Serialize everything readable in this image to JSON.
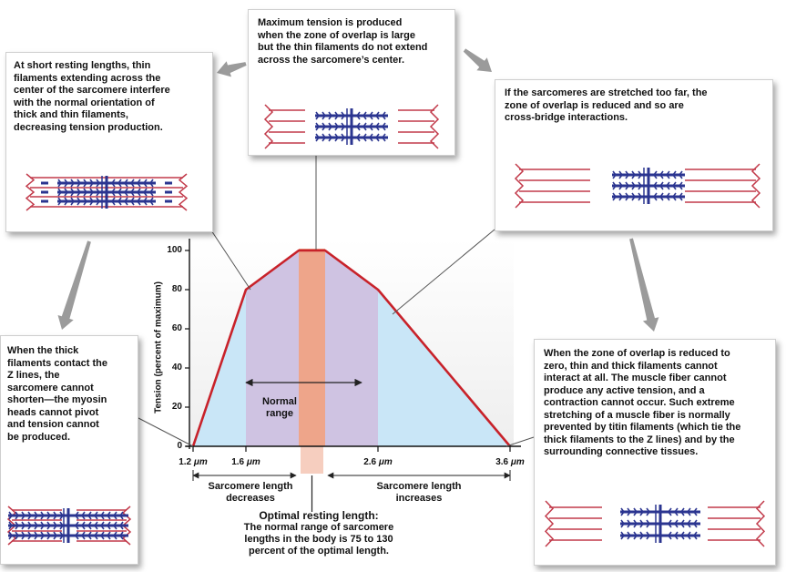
{
  "chart_data": {
    "type": "line",
    "ylabel": "Tension (percent of maximum)",
    "yticks": [
      "0",
      "20",
      "40",
      "60",
      "80",
      "100"
    ],
    "ylim": [
      0,
      100
    ],
    "x_um": [
      1.2,
      1.6,
      2.0,
      2.2,
      2.6,
      3.6
    ],
    "tension_percent": [
      0,
      80,
      100,
      100,
      80,
      0
    ],
    "xtick_labels": [
      {
        "value": "1.2",
        "unit": "μm"
      },
      {
        "value": "1.6",
        "unit": "μm"
      },
      {
        "value": "2.6",
        "unit": "μm"
      },
      {
        "value": "3.6",
        "unit": "μm"
      }
    ],
    "normal_range_label": [
      "Normal",
      "range"
    ],
    "normal_range_um": [
      1.6,
      2.6
    ],
    "optimal_band_um": [
      2.0,
      2.2
    ]
  },
  "captions": {
    "top_center": [
      "Maximum tension is produced",
      "when the zone of overlap is large",
      "but the thin filaments do not extend",
      "across the sarcomere’s center."
    ],
    "top_left": [
      "At short resting lengths, thin",
      "filaments extending across the",
      "center of the sarcomere interfere",
      "with the normal orientation of",
      "thick and thin filaments,",
      "decreasing tension production."
    ],
    "top_right": [
      "If the sarcomeres are stretched too far, the",
      "zone of overlap is reduced and so are",
      "cross-bridge interactions."
    ],
    "bottom_left": [
      "When the thick",
      "filaments contact the",
      "Z lines, the",
      "sarcomere cannot",
      "shorten—the myosin",
      "heads cannot pivot",
      "and tension cannot",
      "be produced."
    ],
    "bottom_right": [
      "When the zone of overlap is reduced to",
      "zero, thin and thick filaments cannot",
      "interact at all. The muscle fiber cannot",
      "produce any active tension, and a",
      "contraction cannot occur. Such extreme",
      "stretching of a muscle fiber is normally",
      "prevented by titin filaments (which tie the",
      "thick filaments to the Z lines) and by the",
      "surrounding connective tissues."
    ]
  },
  "axis_labels": {
    "decreases": [
      "Sarcomere length",
      "decreases"
    ],
    "increases": [
      "Sarcomere length",
      "increases"
    ]
  },
  "optimal": {
    "title": "Optimal resting length",
    "colon": ":",
    "lines": [
      "The normal range of sarcomere",
      "lengths in the body is 75 to 130",
      "percent of the optimal length."
    ]
  },
  "colors": {
    "curve": "#c8222a",
    "fill": "#c9e6f7",
    "normal_band": "#cfc3e2",
    "optimal_band": "#eea58a",
    "thick": "#2b3590",
    "thin": "#c23a4a"
  }
}
